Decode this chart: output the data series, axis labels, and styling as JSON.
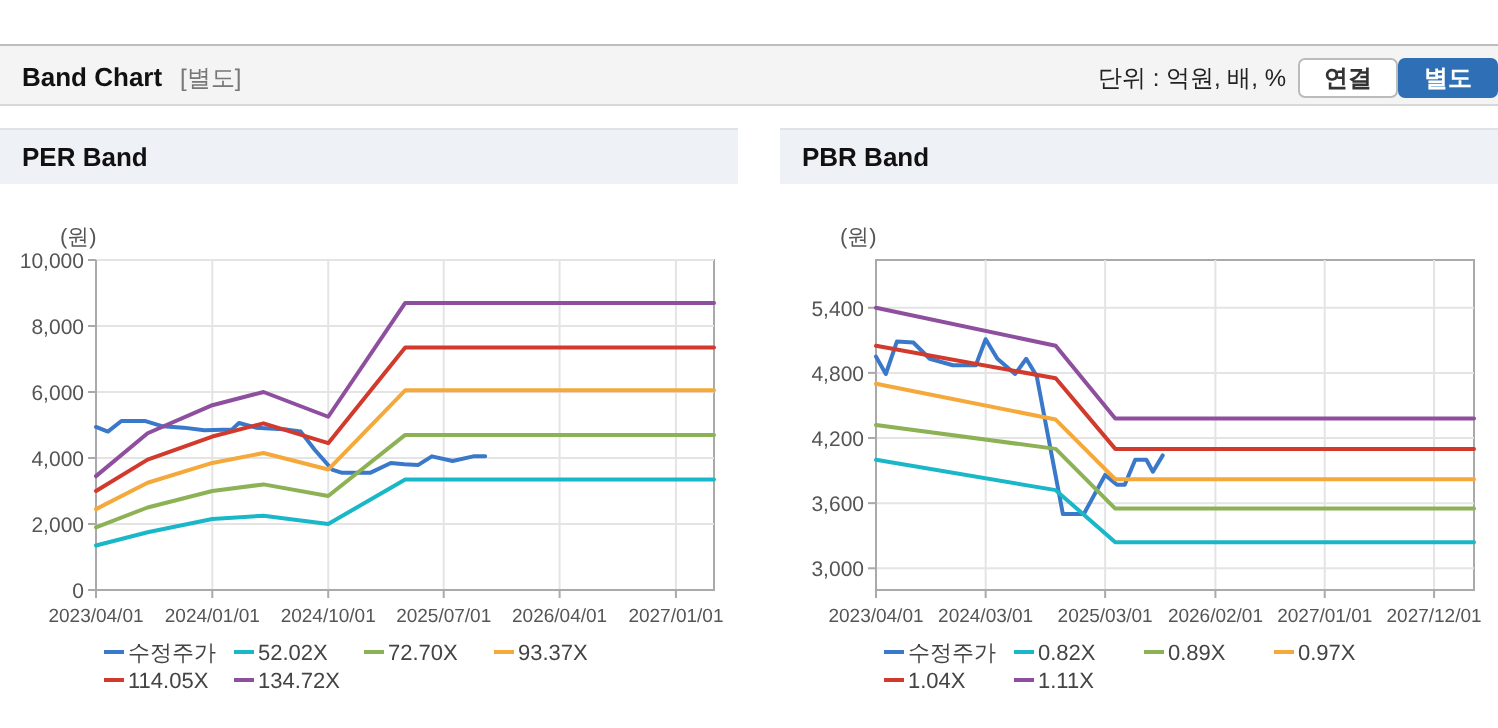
{
  "chart_data": [
    {
      "type": "other",
      "title": "Band Chart",
      "subtitle": "[별도]",
      "annotations": [
        "단위 : 억원, 배, %",
        "연결",
        "별도"
      ]
    },
    {
      "type": "line",
      "title": "PER Band",
      "ylabel": "(원)",
      "xlim": [
        "2023-04-01",
        "2027-04-01"
      ],
      "xticks": [
        {
          "value": "2023-04-01",
          "label": "2023/04/01"
        },
        {
          "value": "2024-01-01",
          "label": "2024/01/01"
        },
        {
          "value": "2024-10-01",
          "label": "2024/10/01"
        },
        {
          "value": "2025-07-01",
          "label": "2025/07/01"
        },
        {
          "value": "2026-04-01",
          "label": "2026/04/01"
        },
        {
          "value": "2027-01-01",
          "label": "2027/01/01"
        }
      ],
      "ylim": [
        0,
        10000
      ],
      "yticks": [
        0,
        {
          "value": 2000,
          "label": "2,000"
        },
        {
          "value": 4000,
          "label": "4,000"
        },
        {
          "value": 6000,
          "label": "6,000"
        },
        {
          "value": 8000,
          "label": "8,000"
        },
        {
          "value": 10000,
          "label": "10,000"
        }
      ],
      "grid": true,
      "legend": "bottom",
      "series": [
        {
          "name": "수정주가",
          "color": "#3a78c9",
          "x": [
            "2023-04-01",
            "2023-04-29",
            "2023-05-31",
            "2023-07-27",
            "2023-09-06",
            "2023-10-25",
            "2023-12-13",
            "2024-02-16",
            "2024-03-04",
            "2024-04-13",
            "2024-06-26",
            "2024-07-28",
            "2024-08-30",
            "2024-10-10",
            "2024-11-03",
            "2025-01-08",
            "2025-02-26",
            "2025-03-30",
            "2025-05-02",
            "2025-06-03",
            "2025-07-22",
            "2025-09-09",
            "2025-10-07"
          ],
          "values": [
            4940,
            4800,
            5120,
            5120,
            4960,
            4920,
            4840,
            4860,
            5060,
            4920,
            4860,
            4800,
            4250,
            3650,
            3550,
            3550,
            3850,
            3810,
            3790,
            4050,
            3910,
            4050,
            4050
          ]
        },
        {
          "name": "52.02X",
          "color": "#1ab7c8",
          "x": [
            "2023-04-01",
            "2023-08-01",
            "2024-01-01",
            "2024-05-01",
            "2024-10-01",
            "2025-04-01",
            "2027-04-01"
          ],
          "values": [
            1350,
            1750,
            2150,
            2250,
            2000,
            3350,
            3350
          ]
        },
        {
          "name": "72.70X",
          "color": "#8db255",
          "x": [
            "2023-04-01",
            "2023-08-01",
            "2024-01-01",
            "2024-05-01",
            "2024-10-01",
            "2025-04-01",
            "2027-04-01"
          ],
          "values": [
            1900,
            2500,
            3000,
            3200,
            2850,
            4700,
            4700
          ]
        },
        {
          "name": "93.37X",
          "color": "#f4a93a",
          "x": [
            "2023-04-01",
            "2023-08-01",
            "2024-01-01",
            "2024-05-01",
            "2024-10-01",
            "2025-04-01",
            "2027-04-01"
          ],
          "values": [
            2450,
            3250,
            3850,
            4150,
            3650,
            6050,
            6050
          ]
        },
        {
          "name": "114.05X",
          "color": "#d13a2c",
          "x": [
            "2023-04-01",
            "2023-08-01",
            "2024-01-01",
            "2024-05-01",
            "2024-10-01",
            "2025-04-01",
            "2027-04-01"
          ],
          "values": [
            3000,
            3950,
            4650,
            5050,
            4450,
            7350,
            7350
          ]
        },
        {
          "name": "134.72X",
          "color": "#8e4f9e",
          "x": [
            "2023-04-01",
            "2023-08-01",
            "2024-01-01",
            "2024-05-01",
            "2024-10-01",
            "2025-04-01",
            "2027-04-01"
          ],
          "values": [
            3450,
            4750,
            5600,
            6000,
            5250,
            8700,
            8700
          ]
        }
      ]
    },
    {
      "type": "line",
      "title": "PBR Band",
      "ylabel": "(원)",
      "xlim": [
        "2023-04-01",
        "2028-04-01"
      ],
      "xticks": [
        {
          "value": "2023-04-01",
          "label": "2023/04/01"
        },
        {
          "value": "2024-03-01",
          "label": "2024/03/01"
        },
        {
          "value": "2025-03-01",
          "label": "2025/03/01"
        },
        {
          "value": "2026-02-01",
          "label": "2026/02/01"
        },
        {
          "value": "2027-01-01",
          "label": "2027/01/01"
        },
        {
          "value": "2027-12-01",
          "label": "2027/12/01"
        }
      ],
      "ylim": [
        2800,
        5840
      ],
      "yticks": [
        {
          "value": 3000,
          "label": "3,000"
        },
        {
          "value": 3600,
          "label": "3,600"
        },
        {
          "value": 4200,
          "label": "4,200"
        },
        {
          "value": 4800,
          "label": "4,800"
        },
        {
          "value": 5400,
          "label": "5,400"
        }
      ],
      "grid": true,
      "legend": "bottom",
      "series": [
        {
          "name": "수정주가",
          "color": "#3a78c9",
          "x": [
            "2023-04-01",
            "2023-05-01",
            "2023-06-04",
            "2023-07-24",
            "2023-09-12",
            "2023-11-22",
            "2024-01-31",
            "2024-03-01",
            "2024-04-06",
            "2024-05-30",
            "2024-07-03",
            "2024-08-04",
            "2024-09-07",
            "2024-10-23",
            "2024-12-26",
            "2025-03-01",
            "2025-04-06",
            "2025-04-30",
            "2025-06-01",
            "2025-07-05",
            "2025-07-25",
            "2025-08-24"
          ],
          "values": [
            4950,
            4790,
            5090,
            5080,
            4930,
            4870,
            4870,
            5110,
            4930,
            4790,
            4930,
            4770,
            4230,
            3500,
            3500,
            3860,
            3770,
            3770,
            4000,
            4000,
            3890,
            4040
          ]
        },
        {
          "name": "0.82X",
          "color": "#1ab7c8",
          "x": [
            "2023-04-01",
            "2024-10-01",
            "2025-04-01",
            "2028-04-01"
          ],
          "values": [
            4000,
            3720,
            3240,
            3240
          ]
        },
        {
          "name": "0.89X",
          "color": "#8db255",
          "x": [
            "2023-04-01",
            "2024-10-01",
            "2025-04-01",
            "2028-04-01"
          ],
          "values": [
            4320,
            4100,
            3550,
            3550
          ]
        },
        {
          "name": "0.97X",
          "color": "#f4a93a",
          "x": [
            "2023-04-01",
            "2024-10-01",
            "2025-04-01",
            "2028-04-01"
          ],
          "values": [
            4700,
            4370,
            3820,
            3820
          ]
        },
        {
          "name": "1.04X",
          "color": "#d13a2c",
          "x": [
            "2023-04-01",
            "2024-10-01",
            "2025-04-01",
            "2028-04-01"
          ],
          "values": [
            5050,
            4750,
            4100,
            4100
          ]
        },
        {
          "name": "1.11X",
          "color": "#8e4f9e",
          "x": [
            "2023-04-01",
            "2024-10-01",
            "2025-04-01",
            "2028-04-01"
          ],
          "values": [
            5400,
            5050,
            4380,
            4380
          ]
        }
      ]
    }
  ]
}
